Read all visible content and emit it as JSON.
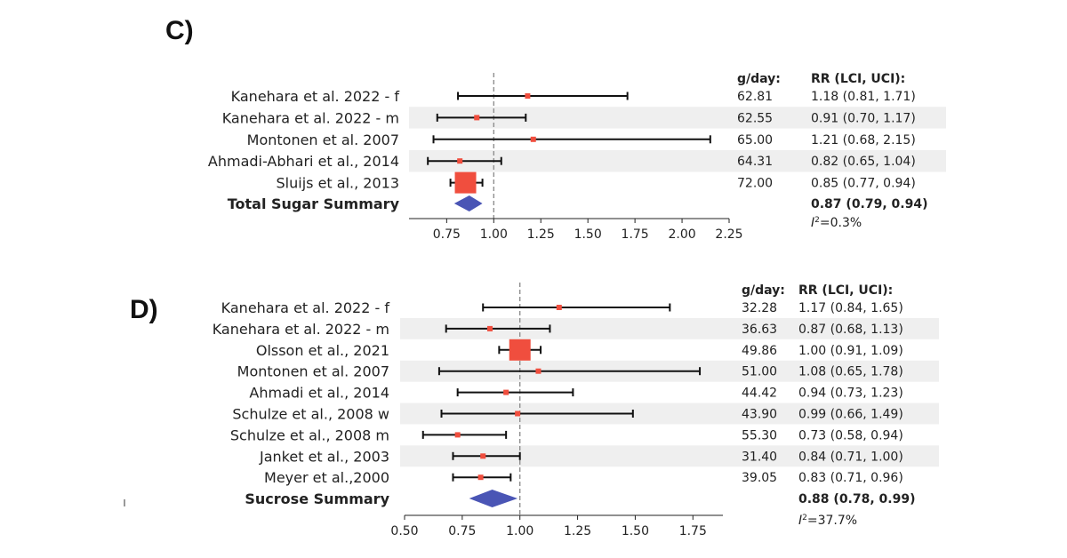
{
  "chart_data": [
    {
      "type": "forest",
      "panel": "C)",
      "col_headers": {
        "dose": "g/day:",
        "rr": "RR (LCI, UCI):"
      },
      "xlim": [
        0.55,
        2.25
      ],
      "xticks": [
        "0.75",
        "1.00",
        "1.25",
        "1.50",
        "1.75",
        "2.00",
        "2.25"
      ],
      "reference_line": 1.0,
      "studies": [
        {
          "label": "Kanehara et al. 2022 - f",
          "rr": 1.18,
          "lci": 0.81,
          "uci": 1.71,
          "dose": "62.81",
          "rr_text": "1.18 (0.81, 1.71)",
          "shaded": false,
          "weight": "small"
        },
        {
          "label": "Kanehara et al. 2022 - m",
          "rr": 0.91,
          "lci": 0.7,
          "uci": 1.17,
          "dose": "62.55",
          "rr_text": "0.91 (0.70, 1.17)",
          "shaded": true,
          "weight": "small"
        },
        {
          "label": "Montonen et al. 2007",
          "rr": 1.21,
          "lci": 0.68,
          "uci": 2.15,
          "dose": "65.00",
          "rr_text": "1.21 (0.68, 2.15)",
          "shaded": false,
          "weight": "small"
        },
        {
          "label": "Ahmadi-Abhari et al., 2014",
          "rr": 0.82,
          "lci": 0.65,
          "uci": 1.04,
          "dose": "64.31",
          "rr_text": "0.82 (0.65, 1.04)",
          "shaded": true,
          "weight": "small"
        },
        {
          "label": "Sluijs et al., 2013",
          "rr": 0.85,
          "lci": 0.77,
          "uci": 0.94,
          "dose": "72.00",
          "rr_text": "0.85 (0.77, 0.94)",
          "shaded": false,
          "weight": "large"
        }
      ],
      "summary": {
        "label": "Total Sugar Summary",
        "rr": 0.87,
        "lci": 0.79,
        "uci": 0.94,
        "rr_text": "0.87 (0.79, 0.94)",
        "i2_prefix": "I",
        "i2_sup": "2",
        "i2_value": "=0.3%"
      }
    },
    {
      "type": "forest",
      "panel": "D)",
      "col_headers": {
        "dose": "g/day:",
        "rr": "RR (LCI, UCI):"
      },
      "xlim": [
        0.5,
        1.88
      ],
      "xticks": [
        "0.50",
        "0.75",
        "1.00",
        "1.25",
        "1.50",
        "1.75"
      ],
      "reference_line": 1.0,
      "studies": [
        {
          "label": "Kanehara et al. 2022 - f",
          "rr": 1.17,
          "lci": 0.84,
          "uci": 1.65,
          "dose": "32.28",
          "rr_text": "1.17 (0.84, 1.65)",
          "shaded": false,
          "weight": "small"
        },
        {
          "label": "Kanehara et al. 2022 - m",
          "rr": 0.87,
          "lci": 0.68,
          "uci": 1.13,
          "dose": "36.63",
          "rr_text": "0.87 (0.68, 1.13)",
          "shaded": true,
          "weight": "small"
        },
        {
          "label": "Olsson et al., 2021",
          "rr": 1.0,
          "lci": 0.91,
          "uci": 1.09,
          "dose": "49.86",
          "rr_text": "1.00 (0.91, 1.09)",
          "shaded": false,
          "weight": "large"
        },
        {
          "label": "Montonen et al. 2007",
          "rr": 1.08,
          "lci": 0.65,
          "uci": 1.78,
          "dose": "51.00",
          "rr_text": "1.08 (0.65, 1.78)",
          "shaded": true,
          "weight": "small"
        },
        {
          "label": "Ahmadi et al., 2014",
          "rr": 0.94,
          "lci": 0.73,
          "uci": 1.23,
          "dose": "44.42",
          "rr_text": "0.94 (0.73, 1.23)",
          "shaded": false,
          "weight": "small"
        },
        {
          "label": "Schulze et al., 2008 w",
          "rr": 0.99,
          "lci": 0.66,
          "uci": 1.49,
          "dose": "43.90",
          "rr_text": "0.99 (0.66, 1.49)",
          "shaded": true,
          "weight": "small"
        },
        {
          "label": "Schulze et al., 2008 m",
          "rr": 0.73,
          "lci": 0.58,
          "uci": 0.94,
          "dose": "55.30",
          "rr_text": "0.73 (0.58, 0.94)",
          "shaded": false,
          "weight": "small"
        },
        {
          "label": "Janket et al., 2003",
          "rr": 0.84,
          "lci": 0.71,
          "uci": 1.0,
          "dose": "31.40",
          "rr_text": "0.84 (0.71, 1.00)",
          "shaded": true,
          "weight": "small"
        },
        {
          "label": "Meyer et al.,2000",
          "rr": 0.83,
          "lci": 0.71,
          "uci": 0.96,
          "dose": "39.05",
          "rr_text": "0.83 (0.71, 0.96)",
          "shaded": false,
          "weight": "small"
        }
      ],
      "summary": {
        "label": "Sucrose Summary",
        "rr": 0.88,
        "lci": 0.78,
        "uci": 0.99,
        "rr_text": "0.88 (0.78, 0.99)",
        "i2_prefix": "I",
        "i2_sup": "2",
        "i2_value": "=37.7%"
      }
    }
  ],
  "colors": {
    "point": "#f04e3e",
    "summary": "#4a55b5",
    "ci_line": "#111111",
    "shade": "#efefef",
    "ref_line": "#888888"
  }
}
